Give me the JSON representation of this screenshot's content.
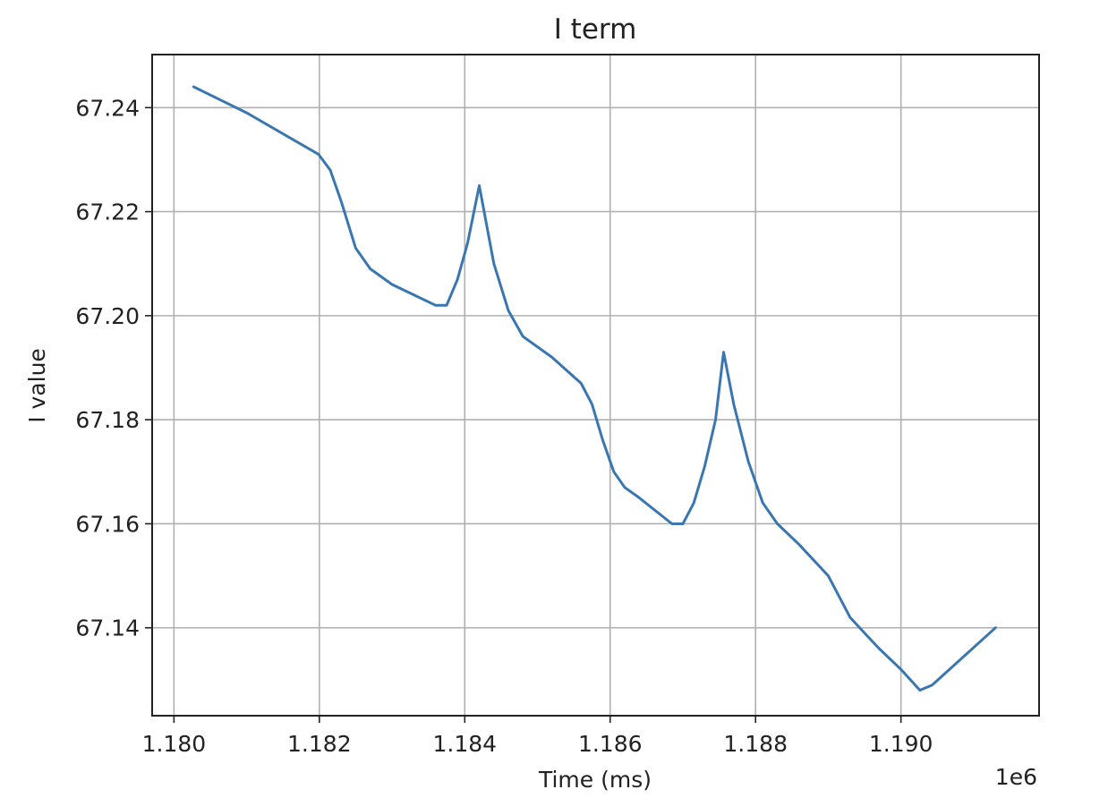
{
  "chart_data": {
    "type": "line",
    "title": "I term",
    "xlabel": "Time (ms)",
    "ylabel": "I value",
    "x_offset_label": "1e6",
    "x_scale": 1000000,
    "xlim": [
      1179700,
      1191900
    ],
    "ylim": [
      67.1231,
      67.2502
    ],
    "xticks": [
      1180000,
      1182000,
      1184000,
      1186000,
      1188000,
      1190000
    ],
    "xtick_labels": [
      "1.180",
      "1.182",
      "1.184",
      "1.186",
      "1.188",
      "1.190"
    ],
    "yticks": [
      67.14,
      67.16,
      67.18,
      67.2,
      67.22,
      67.24
    ],
    "ytick_labels": [
      "67.14",
      "67.16",
      "67.18",
      "67.20",
      "67.22",
      "67.24"
    ],
    "grid": true,
    "series": [
      {
        "color": "#3a76b0",
        "x": [
          1180270,
          1181000,
          1181990,
          1182150,
          1182300,
          1182500,
          1182700,
          1183000,
          1183300,
          1183600,
          1183750,
          1183900,
          1184040,
          1184200,
          1184400,
          1184600,
          1184800,
          1185200,
          1185600,
          1185750,
          1185900,
          1186050,
          1186200,
          1186400,
          1186850,
          1187000,
          1187150,
          1187300,
          1187450,
          1187560,
          1187700,
          1187900,
          1188100,
          1188300,
          1188600,
          1189000,
          1189300,
          1189500,
          1189700,
          1190000,
          1190260,
          1190430,
          1191300
        ],
        "y": [
          67.244,
          67.239,
          67.231,
          67.228,
          67.222,
          67.213,
          67.209,
          67.206,
          67.204,
          67.202,
          67.202,
          67.207,
          67.214,
          67.225,
          67.21,
          67.201,
          67.196,
          67.192,
          67.187,
          67.183,
          67.176,
          67.17,
          67.167,
          67.165,
          67.16,
          67.16,
          67.164,
          67.171,
          67.18,
          67.193,
          67.183,
          67.172,
          67.164,
          67.16,
          67.156,
          67.15,
          67.142,
          67.139,
          67.136,
          67.132,
          67.128,
          67.129,
          67.14
        ]
      }
    ]
  }
}
